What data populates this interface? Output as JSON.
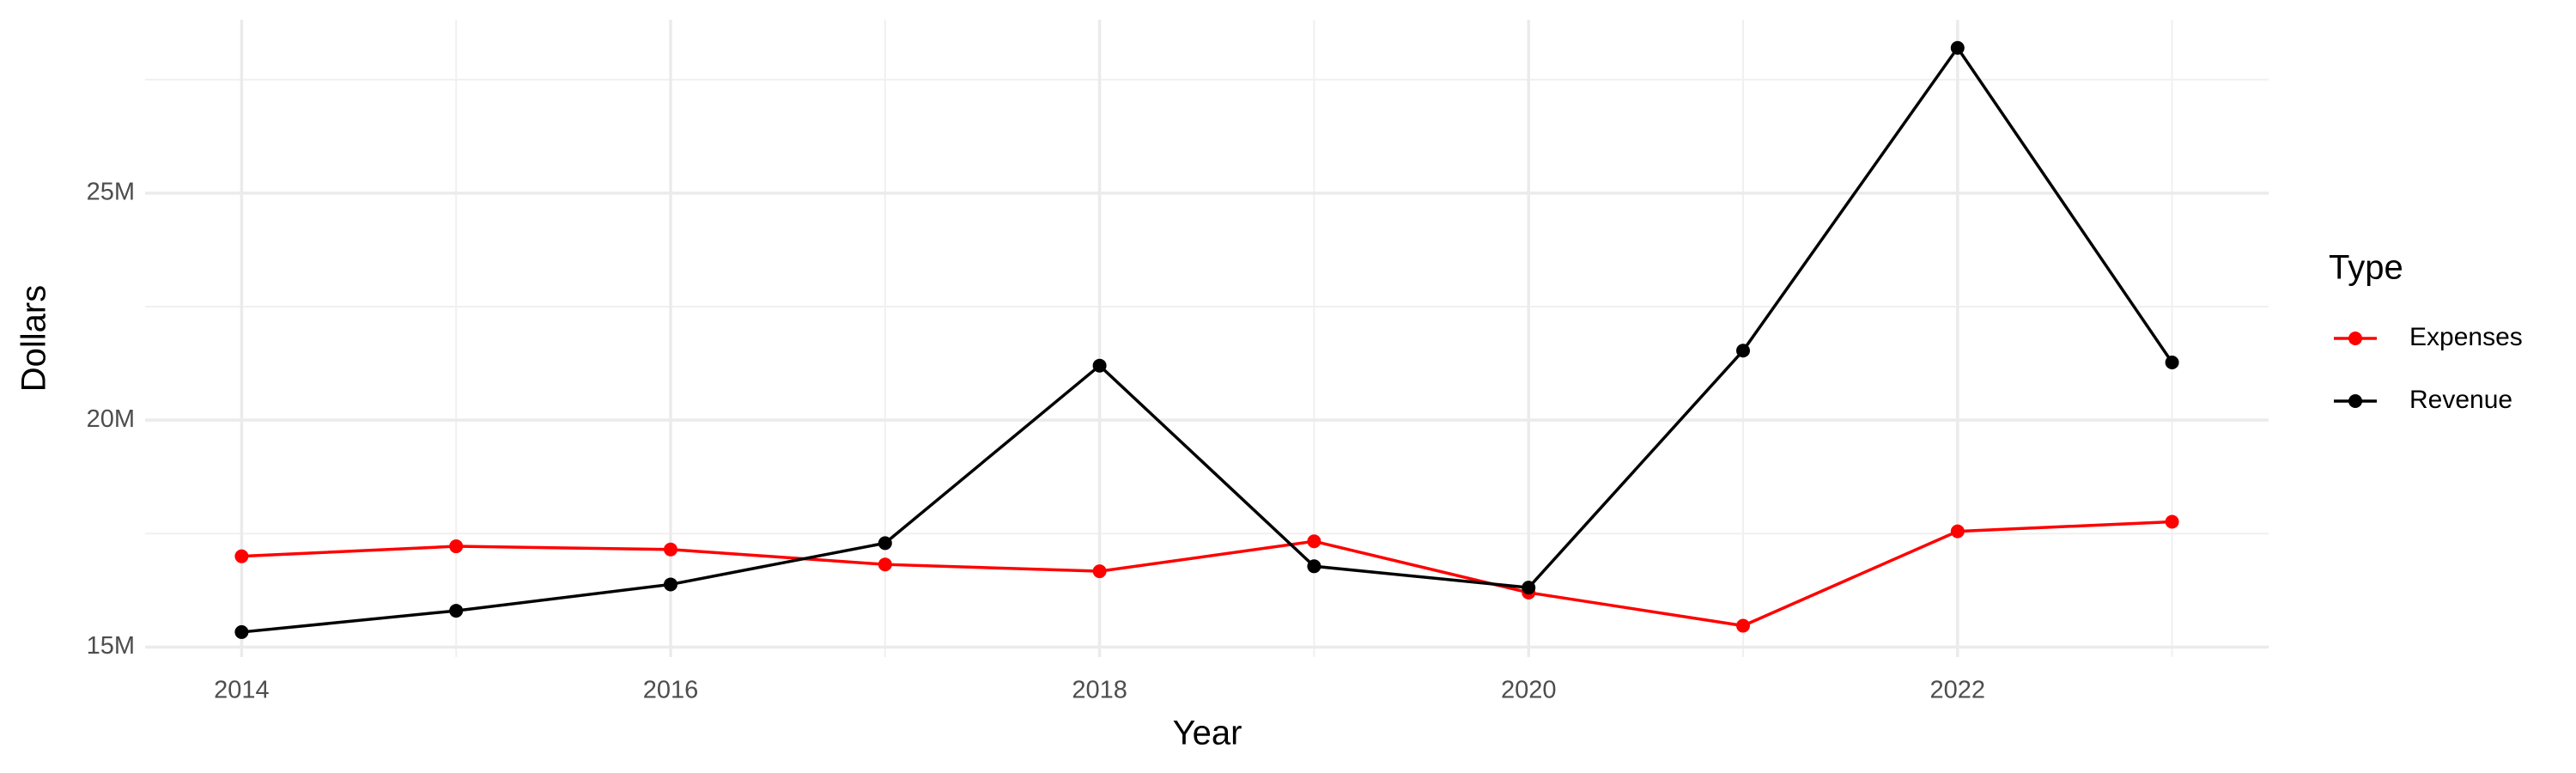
{
  "chart_data": {
    "type": "line",
    "x_label": "Year",
    "y_label": "Dollars",
    "x": [
      2014,
      2015,
      2016,
      2017,
      2018,
      2019,
      2020,
      2021,
      2022,
      2023
    ],
    "series": [
      {
        "name": "Expenses",
        "color": "#ff0000",
        "values": [
          17000000,
          17220000,
          17150000,
          16820000,
          16670000,
          17330000,
          16200000,
          15470000,
          17550000,
          17760000
        ]
      },
      {
        "name": "Revenue",
        "color": "#000000",
        "values": [
          15330000,
          15800000,
          16380000,
          17290000,
          21200000,
          16780000,
          16310000,
          21530000,
          28200000,
          21270000
        ]
      }
    ],
    "xlim": [
      2013.55,
      2023.45
    ],
    "xticks": [
      2014,
      2016,
      2018,
      2020,
      2022
    ],
    "ylim": [
      14780000,
      28820000
    ],
    "yticks": [
      {
        "value": 15000000,
        "label": "15M"
      },
      {
        "value": 20000000,
        "label": "20M"
      },
      {
        "value": 25000000,
        "label": "25M"
      }
    ],
    "grid": true,
    "legend_title": "Type",
    "legend_position": "right"
  }
}
